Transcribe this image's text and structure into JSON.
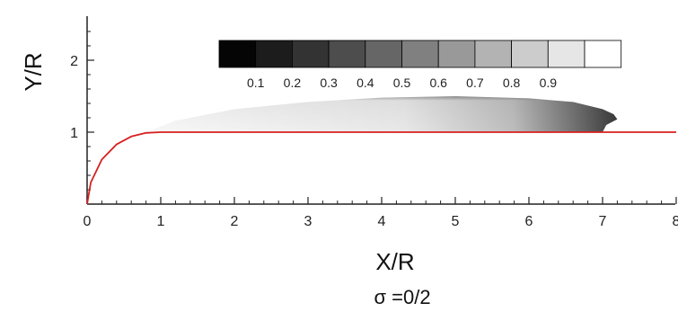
{
  "chart_data": {
    "type": "contour",
    "xlabel": "X/R",
    "ylabel": "Y/R",
    "caption": "σ =0/2",
    "xlim": [
      0,
      8
    ],
    "ylim": [
      0,
      2.5
    ],
    "xticks": [
      "0",
      "1",
      "2",
      "3",
      "4",
      "5",
      "6",
      "7",
      "8"
    ],
    "yticks": [
      "1",
      "2"
    ],
    "legend": {
      "placement": "top-center",
      "levels": [
        "0.1",
        "0.2",
        "0.3",
        "0.4",
        "0.5",
        "0.6",
        "0.7",
        "0.8",
        "0.9"
      ],
      "colors": [
        "#050505",
        "#1c1c1c",
        "#333333",
        "#4d4d4d",
        "#666666",
        "#808080",
        "#999999",
        "#b3b3b3",
        "#cccccc",
        "#e6e6e6",
        "#ffffff"
      ]
    },
    "body_contour": {
      "color": "#d62020",
      "points": [
        [
          0,
          0
        ],
        [
          0.05,
          0.3
        ],
        [
          0.2,
          0.62
        ],
        [
          0.4,
          0.83
        ],
        [
          0.6,
          0.94
        ],
        [
          0.8,
          0.99
        ],
        [
          1.0,
          1.0
        ],
        [
          8.0,
          1.0
        ]
      ]
    },
    "cavity": {
      "upper": [
        [
          0.8,
          1.0
        ],
        [
          1.2,
          1.16
        ],
        [
          2.0,
          1.32
        ],
        [
          3.0,
          1.42
        ],
        [
          4.0,
          1.48
        ],
        [
          5.0,
          1.5
        ],
        [
          6.0,
          1.47
        ],
        [
          6.6,
          1.42
        ],
        [
          7.0,
          1.32
        ],
        [
          7.15,
          1.25
        ],
        [
          7.2,
          1.18
        ],
        [
          7.05,
          1.1
        ],
        [
          7.0,
          1.0
        ]
      ],
      "closure_x": 7.2
    }
  }
}
